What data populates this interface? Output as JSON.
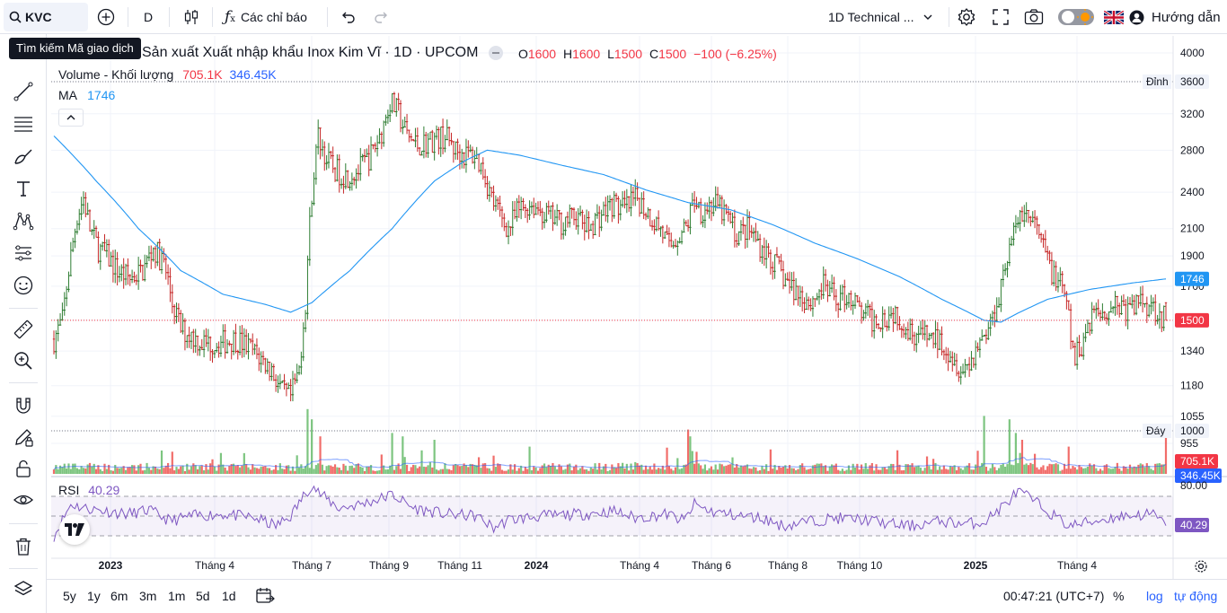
{
  "toolbar": {
    "symbol": "KVC",
    "interval": "D",
    "indicators_label": "Các chỉ báo",
    "layout_name": "1D Technical ...",
    "help_label": "Hướng dẫn"
  },
  "tooltip": "Tìm kiếm Mã giao dịch",
  "legend": {
    "title": "Sản xuất Xuất nhập khẩu Inox Kim Vĩ · 1D · UPCOM",
    "o_label": "O",
    "o_value": "1600",
    "h_label": "H",
    "h_value": "1600",
    "l_label": "L",
    "l_value": "1500",
    "c_label": "C",
    "c_value": "1500",
    "change": "−100 (−6.25%)",
    "volume_label": "Volume - Khối lượng",
    "volume_value": "705.1K",
    "volume_ma_value": "346.45K",
    "ma_label": "MA",
    "ma_value": "1746",
    "rsi_label": "RSI",
    "rsi_value": "40.29"
  },
  "price_labels": {
    "high_tag": "Đỉnh",
    "high_value": "3600",
    "low_tag": "Đáy",
    "low_value": "1000",
    "ma_badge": "1746",
    "last_badge": "1500",
    "volume_badge": "705.1K",
    "volume_ma_badge": "346.45K",
    "rsi_top": "80.00",
    "rsi_badge": "40.29"
  },
  "bottom": {
    "ranges": [
      "5y",
      "1y",
      "6m",
      "3m",
      "1m",
      "5d",
      "1d"
    ],
    "clock": "00:47:21 (UTC+7)",
    "percent": "%",
    "log": "log",
    "auto": "tự động"
  },
  "colors": {
    "up": "#2e7d32",
    "down": "#c62828",
    "ma": "#2196f3",
    "rsi": "#7e57c2",
    "accent": "#2962ff",
    "badge_ma": "#2196f3",
    "badge_last": "#f23645",
    "badge_rsi": "#7e57c2"
  },
  "chart_data": {
    "type": "candlestick",
    "price_axis_ticks": [
      4000,
      3600,
      3200,
      2800,
      2400,
      2100,
      1900,
      1700,
      1500,
      1340,
      1180,
      1055,
      1000,
      955
    ],
    "price_axis_labels": [
      "4000",
      "3600",
      "3200",
      "2800",
      "2400",
      "2100",
      "1900",
      "1700",
      "1500",
      "1340",
      "1180",
      "1055",
      "1000",
      "955"
    ],
    "time_axis_labels": [
      "2023",
      "Tháng 4",
      "Tháng 7",
      "Tháng 9",
      "Tháng 11",
      "2024",
      "Tháng 4",
      "Tháng 6",
      "Tháng 8",
      "Tháng 10",
      "2025",
      "Tháng 4"
    ],
    "time_axis_bold": [
      true,
      false,
      false,
      false,
      false,
      true,
      false,
      false,
      false,
      false,
      true,
      false
    ],
    "price_path": [
      [
        0,
        1400
      ],
      [
        4,
        1500
      ],
      [
        8,
        1900
      ],
      [
        11,
        2200
      ],
      [
        14,
        2350
      ],
      [
        17,
        2100
      ],
      [
        21,
        1950
      ],
      [
        25,
        1900
      ],
      [
        30,
        1800
      ],
      [
        36,
        1750
      ],
      [
        42,
        1800
      ],
      [
        47,
        1950
      ],
      [
        52,
        1850
      ],
      [
        56,
        1600
      ],
      [
        60,
        1450
      ],
      [
        65,
        1420
      ],
      [
        70,
        1380
      ],
      [
        78,
        1380
      ],
      [
        86,
        1400
      ],
      [
        93,
        1350
      ],
      [
        98,
        1300
      ],
      [
        103,
        1250
      ],
      [
        108,
        1150
      ],
      [
        112,
        1130
      ],
      [
        116,
        1250
      ],
      [
        119,
        1600
      ],
      [
        122,
        2400
      ],
      [
        125,
        2950
      ],
      [
        129,
        2700
      ],
      [
        133,
        2600
      ],
      [
        138,
        2550
      ],
      [
        144,
        2600
      ],
      [
        150,
        2750
      ],
      [
        155,
        3000
      ],
      [
        159,
        3350
      ],
      [
        163,
        3200
      ],
      [
        167,
        2950
      ],
      [
        172,
        2850
      ],
      [
        178,
        2900
      ],
      [
        185,
        2950
      ],
      [
        190,
        2800
      ],
      [
        195,
        2750
      ],
      [
        199,
        2750
      ],
      [
        203,
        2600
      ],
      [
        207,
        2350
      ],
      [
        211,
        2200
      ],
      [
        215,
        2100
      ],
      [
        220,
        2250
      ],
      [
        226,
        2300
      ],
      [
        233,
        2200
      ],
      [
        240,
        2150
      ],
      [
        247,
        2200
      ],
      [
        252,
        2100
      ],
      [
        258,
        2200
      ],
      [
        264,
        2300
      ],
      [
        270,
        2250
      ],
      [
        276,
        2350
      ],
      [
        282,
        2200
      ],
      [
        287,
        2100
      ],
      [
        291,
        1950
      ],
      [
        295,
        2050
      ],
      [
        299,
        2100
      ],
      [
        303,
        2350
      ],
      [
        306,
        2250
      ],
      [
        312,
        2300
      ],
      [
        318,
        2200
      ],
      [
        323,
        2050
      ],
      [
        328,
        2100
      ],
      [
        333,
        2000
      ],
      [
        338,
        1900
      ],
      [
        343,
        1800
      ],
      [
        348,
        1700
      ],
      [
        353,
        1650
      ],
      [
        358,
        1600
      ],
      [
        364,
        1700
      ],
      [
        370,
        1620
      ],
      [
        376,
        1650
      ],
      [
        381,
        1550
      ],
      [
        387,
        1500
      ],
      [
        392,
        1520
      ],
      [
        398,
        1550
      ],
      [
        404,
        1450
      ],
      [
        410,
        1420
      ],
      [
        416,
        1400
      ],
      [
        421,
        1380
      ],
      [
        426,
        1300
      ],
      [
        430,
        1250
      ],
      [
        434,
        1300
      ],
      [
        438,
        1400
      ],
      [
        442,
        1450
      ],
      [
        446,
        1600
      ],
      [
        450,
        1850
      ],
      [
        454,
        2050
      ],
      [
        458,
        2250
      ],
      [
        463,
        2150
      ],
      [
        468,
        1950
      ],
      [
        472,
        1800
      ],
      [
        476,
        1700
      ],
      [
        479,
        1600
      ],
      [
        481,
        1400
      ],
      [
        483,
        1300
      ],
      [
        487,
        1400
      ],
      [
        491,
        1550
      ],
      [
        496,
        1550
      ],
      [
        502,
        1600
      ],
      [
        508,
        1550
      ],
      [
        514,
        1620
      ],
      [
        520,
        1580
      ],
      [
        526,
        1500
      ]
    ],
    "ma_path": [
      [
        0,
        2950
      ],
      [
        20,
        2500
      ],
      [
        40,
        2100
      ],
      [
        60,
        1800
      ],
      [
        80,
        1650
      ],
      [
        100,
        1590
      ],
      [
        112,
        1545
      ],
      [
        122,
        1600
      ],
      [
        140,
        1800
      ],
      [
        160,
        2100
      ],
      [
        180,
        2500
      ],
      [
        195,
        2700
      ],
      [
        205,
        2800
      ],
      [
        220,
        2750
      ],
      [
        240,
        2650
      ],
      [
        260,
        2560
      ],
      [
        280,
        2420
      ],
      [
        300,
        2310
      ],
      [
        320,
        2250
      ],
      [
        340,
        2130
      ],
      [
        360,
        1990
      ],
      [
        380,
        1880
      ],
      [
        400,
        1760
      ],
      [
        420,
        1620
      ],
      [
        440,
        1500
      ],
      [
        448,
        1490
      ],
      [
        456,
        1540
      ],
      [
        470,
        1620
      ],
      [
        490,
        1680
      ],
      [
        510,
        1720
      ],
      [
        526,
        1746
      ]
    ],
    "rsi_path": [
      [
        0,
        30
      ],
      [
        8,
        62
      ],
      [
        15,
        58
      ],
      [
        25,
        55
      ],
      [
        35,
        52
      ],
      [
        45,
        56
      ],
      [
        55,
        45
      ],
      [
        65,
        50
      ],
      [
        80,
        52
      ],
      [
        95,
        48
      ],
      [
        105,
        40
      ],
      [
        112,
        50
      ],
      [
        118,
        70
      ],
      [
        122,
        82
      ],
      [
        126,
        72
      ],
      [
        135,
        58
      ],
      [
        145,
        62
      ],
      [
        155,
        68
      ],
      [
        160,
        72
      ],
      [
        170,
        58
      ],
      [
        185,
        52
      ],
      [
        200,
        50
      ],
      [
        208,
        38
      ],
      [
        215,
        46
      ],
      [
        230,
        50
      ],
      [
        250,
        52
      ],
      [
        265,
        55
      ],
      [
        275,
        48
      ],
      [
        290,
        52
      ],
      [
        298,
        45
      ],
      [
        303,
        62
      ],
      [
        310,
        55
      ],
      [
        325,
        50
      ],
      [
        335,
        48
      ],
      [
        345,
        40
      ],
      [
        355,
        44
      ],
      [
        370,
        48
      ],
      [
        385,
        46
      ],
      [
        395,
        42
      ],
      [
        405,
        40
      ],
      [
        420,
        45
      ],
      [
        430,
        42
      ],
      [
        440,
        44
      ],
      [
        450,
        62
      ],
      [
        456,
        75
      ],
      [
        462,
        68
      ],
      [
        470,
        55
      ],
      [
        480,
        40
      ],
      [
        490,
        44
      ],
      [
        505,
        50
      ],
      [
        520,
        52
      ],
      [
        526,
        40
      ]
    ],
    "volume_spikes": [
      [
        120,
        0.95
      ],
      [
        122,
        0.8
      ],
      [
        126,
        0.55
      ],
      [
        160,
        0.6
      ],
      [
        165,
        0.55
      ],
      [
        180,
        0.5
      ],
      [
        225,
        0.4
      ],
      [
        300,
        0.65
      ],
      [
        301,
        0.55
      ],
      [
        440,
        0.85
      ],
      [
        452,
        0.8
      ],
      [
        455,
        0.6
      ],
      [
        458,
        0.5
      ],
      [
        480,
        0.4
      ],
      [
        526,
        0.55
      ]
    ],
    "price_range": [
      955,
      4000
    ],
    "rsi_range": [
      20,
      80
    ],
    "high_value": 3600,
    "low_value": 1000,
    "last_value": 1500
  }
}
